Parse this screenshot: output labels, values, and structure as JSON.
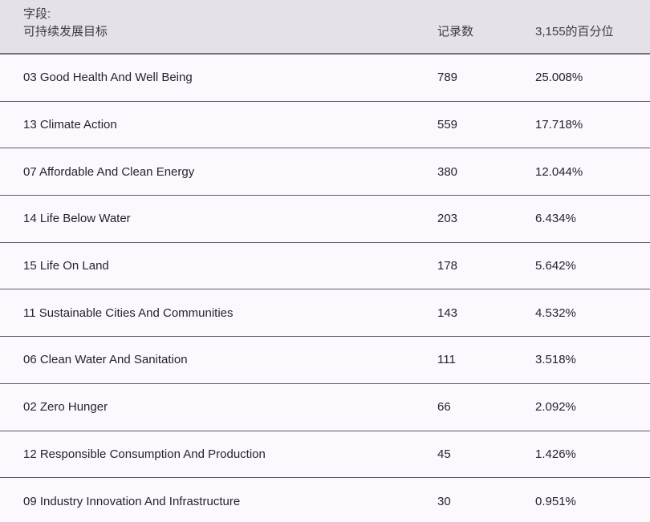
{
  "header": {
    "field_label": "字段:",
    "field_name": "可持续发展目标",
    "col_count": "记录数",
    "col_percentile": "3,155的百分位"
  },
  "rows": [
    {
      "label": "03 Good Health And Well Being",
      "count": "789",
      "percent": "25.008%"
    },
    {
      "label": "13 Climate Action",
      "count": "559",
      "percent": "17.718%"
    },
    {
      "label": "07 Affordable And Clean Energy",
      "count": "380",
      "percent": "12.044%"
    },
    {
      "label": "14 Life Below Water",
      "count": "203",
      "percent": "6.434%"
    },
    {
      "label": "15 Life On Land",
      "count": "178",
      "percent": "5.642%"
    },
    {
      "label": "11 Sustainable Cities And Communities",
      "count": "143",
      "percent": "4.532%"
    },
    {
      "label": "06 Clean Water And Sanitation",
      "count": "111",
      "percent": "3.518%"
    },
    {
      "label": "02 Zero Hunger",
      "count": "66",
      "percent": "2.092%"
    },
    {
      "label": "12 Responsible Consumption And Production",
      "count": "45",
      "percent": "1.426%"
    },
    {
      "label": "09 Industry Innovation And Infrastructure",
      "count": "30",
      "percent": "0.951%"
    }
  ],
  "chart_data": {
    "type": "table",
    "title": "字段: 可持续发展目标",
    "columns": [
      "可持续发展目标",
      "记录数",
      "3,155的百分位"
    ],
    "categories": [
      "03 Good Health And Well Being",
      "13 Climate Action",
      "07 Affordable And Clean Energy",
      "14 Life Below Water",
      "15 Life On Land",
      "11 Sustainable Cities And Communities",
      "06 Clean Water And Sanitation",
      "02 Zero Hunger",
      "12 Responsible Consumption And Production",
      "09 Industry Innovation And Infrastructure"
    ],
    "series": [
      {
        "name": "记录数",
        "values": [
          789,
          559,
          380,
          203,
          178,
          143,
          111,
          66,
          45,
          30
        ]
      },
      {
        "name": "3,155的百分位",
        "values": [
          25.008,
          17.718,
          12.044,
          6.434,
          5.642,
          4.532,
          3.518,
          2.092,
          1.426,
          0.951
        ]
      }
    ],
    "colors": {
      "header_background": "#e4e2e8",
      "row_background": "#fdf8fe",
      "header_border": "#767079",
      "row_border": "#605b65",
      "header_text": "#403d44",
      "row_text": "#26232b"
    }
  }
}
